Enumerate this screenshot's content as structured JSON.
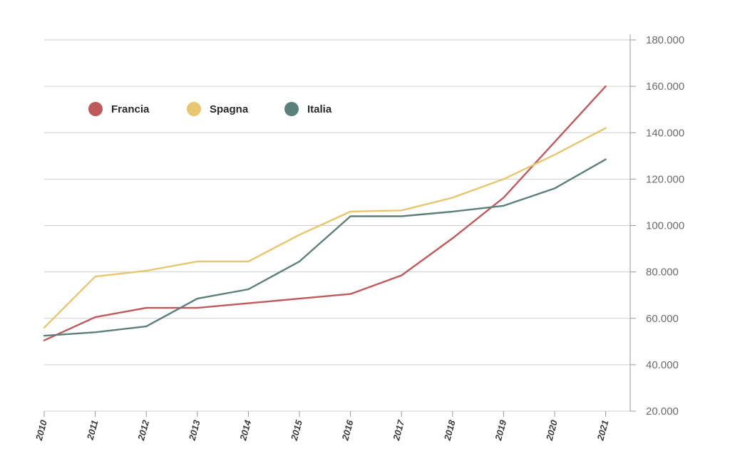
{
  "chart_data": {
    "type": "line",
    "title": "",
    "xlabel": "",
    "ylabel": "",
    "x": [
      "2010",
      "2011",
      "2012",
      "2013",
      "2014",
      "2015",
      "2016",
      "2017",
      "2018",
      "2019",
      "2020",
      "2021"
    ],
    "ylim": [
      20000,
      180000
    ],
    "yticks": [
      20000,
      40000,
      60000,
      80000,
      100000,
      120000,
      140000,
      160000,
      180000
    ],
    "ytick_labels": [
      "20.000",
      "40.000",
      "60.000",
      "80.000",
      "100.000",
      "120.000",
      "140.000",
      "160.000",
      "180.000"
    ],
    "y_axis_position": "right",
    "grid": true,
    "legend_position": "top-left",
    "series": [
      {
        "name": "Francia",
        "color": "#c0595a",
        "values": [
          50500,
          60500,
          64500,
          64500,
          66500,
          68500,
          70500,
          78500,
          94500,
          112000,
          136000,
          160000
        ]
      },
      {
        "name": "Spagna",
        "color": "#e8c66f",
        "values": [
          56000,
          78000,
          80500,
          84500,
          84500,
          96000,
          106000,
          106500,
          112000,
          120000,
          130500,
          142000
        ]
      },
      {
        "name": "Italia",
        "color": "#5b7f7a",
        "values": [
          52500,
          54000,
          56500,
          68500,
          72500,
          84500,
          104000,
          104000,
          106000,
          108500,
          116000,
          128500
        ]
      }
    ]
  }
}
